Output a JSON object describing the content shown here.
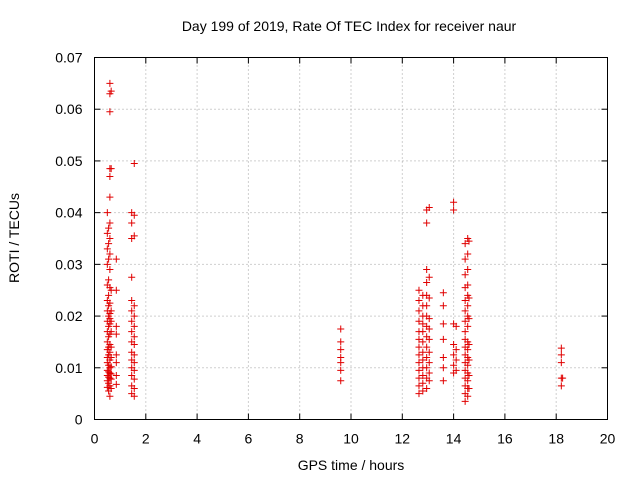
{
  "chart_data": {
    "type": "scatter",
    "title": "Day 199 of 2019, Rate Of TEC Index for receiver naur",
    "xlabel": "GPS time / hours",
    "ylabel": "ROTI / TECUs",
    "xlim": [
      0,
      20
    ],
    "ylim": [
      0,
      0.07
    ],
    "x_ticks": [
      "0",
      "2",
      "4",
      "6",
      "8",
      "10",
      "12",
      "14",
      "16",
      "18",
      "20"
    ],
    "y_ticks": [
      "0",
      "0.01",
      "0.02",
      "0.03",
      "0.04",
      "0.05",
      "0.06",
      "0.07"
    ],
    "grid": true,
    "marker": "+",
    "color": "#e00000",
    "series": [
      {
        "points": [
          [
            0.5,
            0.0062
          ],
          [
            0.5,
            0.0075
          ],
          [
            0.5,
            0.0085
          ],
          [
            0.5,
            0.0095
          ],
          [
            0.5,
            0.011
          ],
          [
            0.5,
            0.012
          ],
          [
            0.5,
            0.0135
          ],
          [
            0.5,
            0.015
          ],
          [
            0.5,
            0.017
          ],
          [
            0.5,
            0.019
          ],
          [
            0.5,
            0.021
          ],
          [
            0.5,
            0.023
          ],
          [
            0.5,
            0.026
          ],
          [
            0.5,
            0.03
          ],
          [
            0.5,
            0.033
          ],
          [
            0.5,
            0.036
          ],
          [
            0.5,
            0.04
          ],
          [
            0.55,
            0.0055
          ],
          [
            0.55,
            0.007
          ],
          [
            0.55,
            0.0082
          ],
          [
            0.55,
            0.0092
          ],
          [
            0.55,
            0.0105
          ],
          [
            0.55,
            0.0125
          ],
          [
            0.55,
            0.014
          ],
          [
            0.55,
            0.016
          ],
          [
            0.55,
            0.018
          ],
          [
            0.55,
            0.02
          ],
          [
            0.55,
            0.022
          ],
          [
            0.55,
            0.024
          ],
          [
            0.55,
            0.027
          ],
          [
            0.55,
            0.031
          ],
          [
            0.55,
            0.034
          ],
          [
            0.55,
            0.037
          ],
          [
            0.6,
            0.0045
          ],
          [
            0.6,
            0.0065
          ],
          [
            0.6,
            0.008
          ],
          [
            0.6,
            0.009
          ],
          [
            0.6,
            0.01
          ],
          [
            0.6,
            0.0115
          ],
          [
            0.6,
            0.013
          ],
          [
            0.6,
            0.0145
          ],
          [
            0.6,
            0.0165
          ],
          [
            0.6,
            0.0185
          ],
          [
            0.6,
            0.0195
          ],
          [
            0.6,
            0.0205
          ],
          [
            0.6,
            0.0225
          ],
          [
            0.6,
            0.0255
          ],
          [
            0.6,
            0.029
          ],
          [
            0.6,
            0.032
          ],
          [
            0.6,
            0.035
          ],
          [
            0.6,
            0.038
          ],
          [
            0.6,
            0.043
          ],
          [
            0.6,
            0.047
          ],
          [
            0.6,
            0.0485
          ],
          [
            0.6,
            0.0595
          ],
          [
            0.6,
            0.063
          ],
          [
            0.6,
            0.065
          ],
          [
            0.65,
            0.006
          ],
          [
            0.65,
            0.0078
          ],
          [
            0.65,
            0.0088
          ],
          [
            0.65,
            0.0102
          ],
          [
            0.65,
            0.012
          ],
          [
            0.65,
            0.014
          ],
          [
            0.65,
            0.017
          ],
          [
            0.65,
            0.019
          ],
          [
            0.65,
            0.021
          ],
          [
            0.65,
            0.025
          ],
          [
            0.65,
            0.0485
          ],
          [
            0.65,
            0.0635
          ],
          [
            0.85,
            0.0068
          ],
          [
            0.85,
            0.0085
          ],
          [
            0.85,
            0.011
          ],
          [
            0.85,
            0.0125
          ],
          [
            0.85,
            0.0165
          ],
          [
            0.85,
            0.018
          ],
          [
            0.85,
            0.025
          ],
          [
            0.85,
            0.031
          ],
          [
            1.45,
            0.005
          ],
          [
            1.45,
            0.0065
          ],
          [
            1.45,
            0.0085
          ],
          [
            1.45,
            0.01
          ],
          [
            1.45,
            0.0115
          ],
          [
            1.45,
            0.013
          ],
          [
            1.45,
            0.015
          ],
          [
            1.45,
            0.017
          ],
          [
            1.45,
            0.019
          ],
          [
            1.45,
            0.021
          ],
          [
            1.45,
            0.023
          ],
          [
            1.45,
            0.0275
          ],
          [
            1.45,
            0.035
          ],
          [
            1.45,
            0.038
          ],
          [
            1.45,
            0.04
          ],
          [
            1.55,
            0.0045
          ],
          [
            1.55,
            0.006
          ],
          [
            1.55,
            0.0078
          ],
          [
            1.55,
            0.0095
          ],
          [
            1.55,
            0.011
          ],
          [
            1.55,
            0.0125
          ],
          [
            1.55,
            0.0145
          ],
          [
            1.55,
            0.016
          ],
          [
            1.55,
            0.018
          ],
          [
            1.55,
            0.02
          ],
          [
            1.55,
            0.022
          ],
          [
            1.55,
            0.0355
          ],
          [
            1.55,
            0.0395
          ],
          [
            1.55,
            0.0495
          ],
          [
            9.6,
            0.0075
          ],
          [
            9.6,
            0.0095
          ],
          [
            9.6,
            0.011
          ],
          [
            9.6,
            0.012
          ],
          [
            9.6,
            0.0135
          ],
          [
            9.6,
            0.015
          ],
          [
            9.6,
            0.0175
          ],
          [
            12.65,
            0.005
          ],
          [
            12.65,
            0.0065
          ],
          [
            12.65,
            0.008
          ],
          [
            12.65,
            0.0095
          ],
          [
            12.65,
            0.011
          ],
          [
            12.65,
            0.0125
          ],
          [
            12.65,
            0.014
          ],
          [
            12.65,
            0.0155
          ],
          [
            12.65,
            0.017
          ],
          [
            12.65,
            0.019
          ],
          [
            12.65,
            0.021
          ],
          [
            12.65,
            0.023
          ],
          [
            12.65,
            0.025
          ],
          [
            12.8,
            0.0055
          ],
          [
            12.8,
            0.007
          ],
          [
            12.8,
            0.0085
          ],
          [
            12.8,
            0.01
          ],
          [
            12.8,
            0.0115
          ],
          [
            12.8,
            0.013
          ],
          [
            12.8,
            0.015
          ],
          [
            12.8,
            0.017
          ],
          [
            12.8,
            0.0185
          ],
          [
            12.8,
            0.02
          ],
          [
            12.8,
            0.022
          ],
          [
            12.8,
            0.024
          ],
          [
            12.95,
            0.006
          ],
          [
            12.95,
            0.008
          ],
          [
            12.95,
            0.01
          ],
          [
            12.95,
            0.012
          ],
          [
            12.95,
            0.014
          ],
          [
            12.95,
            0.016
          ],
          [
            12.95,
            0.018
          ],
          [
            12.95,
            0.02
          ],
          [
            12.95,
            0.022
          ],
          [
            12.95,
            0.024
          ],
          [
            12.95,
            0.0265
          ],
          [
            12.95,
            0.029
          ],
          [
            12.95,
            0.038
          ],
          [
            12.95,
            0.0405
          ],
          [
            13.05,
            0.0075
          ],
          [
            13.05,
            0.009
          ],
          [
            13.05,
            0.011
          ],
          [
            13.05,
            0.013
          ],
          [
            13.05,
            0.0155
          ],
          [
            13.05,
            0.0175
          ],
          [
            13.05,
            0.0195
          ],
          [
            13.05,
            0.0235
          ],
          [
            13.05,
            0.0275
          ],
          [
            13.05,
            0.041
          ],
          [
            13.6,
            0.0075
          ],
          [
            13.6,
            0.01
          ],
          [
            13.6,
            0.012
          ],
          [
            13.6,
            0.0155
          ],
          [
            13.6,
            0.0185
          ],
          [
            13.6,
            0.022
          ],
          [
            13.6,
            0.0245
          ],
          [
            14.0,
            0.009
          ],
          [
            14.0,
            0.0105
          ],
          [
            14.0,
            0.0125
          ],
          [
            14.0,
            0.0145
          ],
          [
            14.0,
            0.0185
          ],
          [
            14.0,
            0.0405
          ],
          [
            14.0,
            0.042
          ],
          [
            14.1,
            0.0095
          ],
          [
            14.1,
            0.0115
          ],
          [
            14.1,
            0.0135
          ],
          [
            14.1,
            0.018
          ],
          [
            14.45,
            0.0035
          ],
          [
            14.45,
            0.005
          ],
          [
            14.45,
            0.0065
          ],
          [
            14.45,
            0.008
          ],
          [
            14.45,
            0.0095
          ],
          [
            14.45,
            0.011
          ],
          [
            14.45,
            0.0125
          ],
          [
            14.45,
            0.014
          ],
          [
            14.45,
            0.0155
          ],
          [
            14.45,
            0.017
          ],
          [
            14.45,
            0.019
          ],
          [
            14.45,
            0.021
          ],
          [
            14.45,
            0.023
          ],
          [
            14.45,
            0.0255
          ],
          [
            14.45,
            0.028
          ],
          [
            14.45,
            0.031
          ],
          [
            14.45,
            0.034
          ],
          [
            14.55,
            0.0045
          ],
          [
            14.55,
            0.006
          ],
          [
            14.55,
            0.0075
          ],
          [
            14.55,
            0.009
          ],
          [
            14.55,
            0.0105
          ],
          [
            14.55,
            0.012
          ],
          [
            14.55,
            0.0135
          ],
          [
            14.55,
            0.015
          ],
          [
            14.55,
            0.018
          ],
          [
            14.55,
            0.02
          ],
          [
            14.55,
            0.022
          ],
          [
            14.55,
            0.024
          ],
          [
            14.55,
            0.026
          ],
          [
            14.55,
            0.029
          ],
          [
            14.55,
            0.032
          ],
          [
            14.55,
            0.035
          ],
          [
            14.6,
            0.006
          ],
          [
            14.6,
            0.0085
          ],
          [
            14.6,
            0.0115
          ],
          [
            14.6,
            0.0145
          ],
          [
            14.6,
            0.0195
          ],
          [
            14.6,
            0.0235
          ],
          [
            14.6,
            0.0345
          ],
          [
            18.2,
            0.0065
          ],
          [
            18.2,
            0.008
          ],
          [
            18.2,
            0.011
          ],
          [
            18.2,
            0.0125
          ],
          [
            18.2,
            0.0138
          ],
          [
            18.25,
            0.008
          ]
        ]
      }
    ]
  }
}
